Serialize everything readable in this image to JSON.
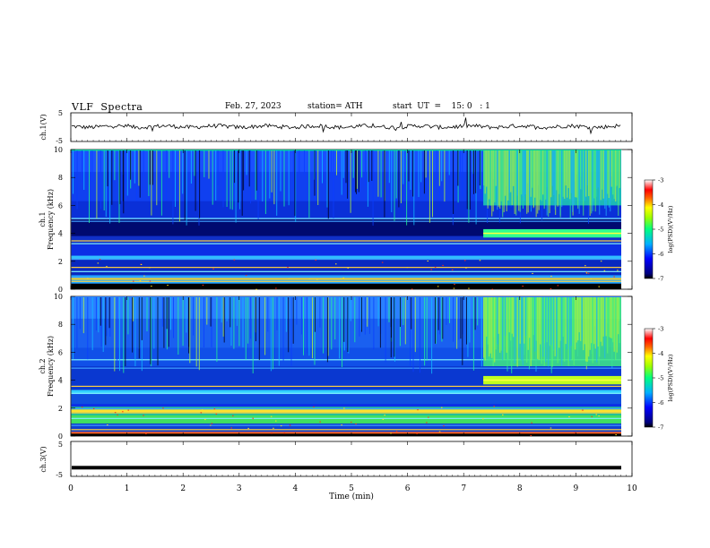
{
  "header": {
    "title": "VLF  Spectra",
    "date": "Feb. 27, 2023",
    "station": "station= ATH",
    "start": "start  UT  =    15: 0   : 1"
  },
  "chart_data": [
    {
      "type": "line",
      "name": "ch1-waveform",
      "ylabel": "ch.1(V)",
      "ylim": [
        -5,
        5
      ],
      "yticks": [
        "5",
        "-5"
      ],
      "level": 0.2,
      "xlim": [
        0,
        10
      ]
    },
    {
      "type": "heatmap",
      "name": "ch1-spectrogram",
      "ylabel_line1": "ch.1",
      "ylabel_line2": "Frequency (kHz)",
      "ylim": [
        0,
        10
      ],
      "yticks": [
        "0",
        "2",
        "4",
        "6",
        "8",
        "10"
      ],
      "xlim": [
        0,
        10
      ],
      "colorbar": {
        "label": "log(PSD)(V²/Hz)",
        "range": [
          -7,
          -3
        ],
        "ticks": [
          "-3",
          "-4",
          "-5",
          "-6",
          "-7"
        ]
      },
      "event": {
        "start_min": 7.35,
        "band_khz": [
          3.7,
          4.3
        ]
      }
    },
    {
      "type": "heatmap",
      "name": "ch2-spectrogram",
      "ylabel_line1": "ch.2",
      "ylabel_line2": "Frequency (kHz)",
      "ylim": [
        0,
        10
      ],
      "yticks": [
        "0",
        "2",
        "4",
        "6",
        "8",
        "10"
      ],
      "xlim": [
        0,
        10
      ],
      "colorbar": {
        "label": "log(PSD)(V²/Hz)",
        "range": [
          -7,
          -3
        ],
        "ticks": [
          "-3",
          "-4",
          "-5",
          "-6",
          "-7"
        ]
      },
      "event": {
        "start_min": 7.35,
        "band_khz": [
          3.7,
          4.3
        ]
      }
    },
    {
      "type": "line",
      "name": "ch3-waveform",
      "ylabel": "ch.3(V)",
      "ylim": [
        -5,
        5
      ],
      "yticks": [
        "5",
        "-5"
      ],
      "level": -2.5,
      "xlim": [
        0,
        10
      ]
    }
  ],
  "xaxis": {
    "label": "Time  (min)",
    "ticks": [
      "0",
      "1",
      "2",
      "3",
      "4",
      "5",
      "6",
      "7",
      "8",
      "9",
      "10"
    ]
  }
}
